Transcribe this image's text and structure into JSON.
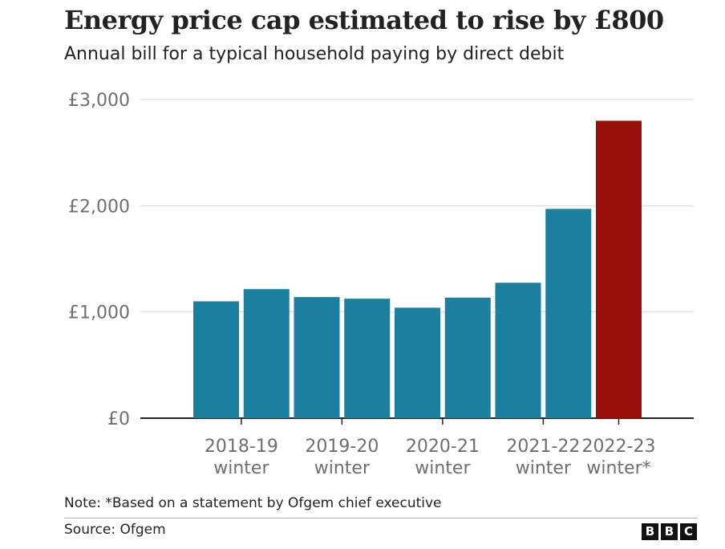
{
  "title": "Energy price cap estimated to rise by £800",
  "subtitle": "Annual bill for a typical household paying by direct debit",
  "note": "Note: *Based on a statement by Ofgem chief executive",
  "source": "Source: Ofgem",
  "logo_letters": [
    "B",
    "B",
    "C"
  ],
  "colors": {
    "bar": "#1b7fa0",
    "highlight": "#990f0a",
    "grid": "#d9d9d9",
    "axis": "#222222"
  },
  "chart_data": {
    "type": "bar",
    "title": "Energy price cap estimated to rise by £800",
    "subtitle": "Annual bill for a typical household paying by direct debit",
    "values": [
      1100,
      1215,
      1140,
      1125,
      1040,
      1135,
      1275,
      1970,
      2800
    ],
    "highlight_index": 8,
    "categories_labeled": [
      {
        "line1": "2018-19",
        "line2": "winter",
        "bar_index": 0.5
      },
      {
        "line1": "2019-20",
        "line2": "winter",
        "bar_index": 2.5
      },
      {
        "line1": "2020-21",
        "line2": "winter",
        "bar_index": 4.5
      },
      {
        "line1": "2021-22",
        "line2": "winter",
        "bar_index": 6.5
      },
      {
        "line1": "2022-23",
        "line2": "winter*",
        "bar_index": 8
      }
    ],
    "yticks": [
      {
        "value": 0,
        "label": "£0"
      },
      {
        "value": 1000,
        "label": "£1,000"
      },
      {
        "value": 2000,
        "label": "£2,000"
      },
      {
        "value": 3000,
        "label": "£3,000"
      }
    ],
    "ylim": [
      0,
      3000
    ],
    "grid": true
  }
}
